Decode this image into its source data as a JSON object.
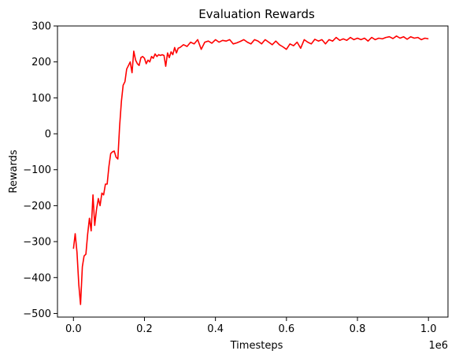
{
  "chart_data": {
    "type": "line",
    "title": "Evaluation Rewards",
    "xlabel": "Timesteps",
    "ylabel": "Rewards",
    "x_offset_label": "1e6",
    "xlim": [
      -0.045,
      1.055
    ],
    "ylim": [
      -510,
      300
    ],
    "xticks": [
      0.0,
      0.2,
      0.4,
      0.6,
      0.8,
      1.0
    ],
    "xtick_labels": [
      "0.0",
      "0.2",
      "0.4",
      "0.6",
      "0.8",
      "1.0"
    ],
    "yticks": [
      300,
      200,
      100,
      0,
      -100,
      -200,
      -300,
      -400,
      -500
    ],
    "ytick_labels": [
      "300",
      "200",
      "100",
      "0",
      "−100",
      "−200",
      "−300",
      "−400",
      "−500"
    ],
    "grid": false,
    "series": [
      {
        "color": "#ff0000",
        "x": [
          0.0,
          0.005,
          0.01,
          0.015,
          0.02,
          0.025,
          0.03,
          0.035,
          0.04,
          0.045,
          0.05,
          0.055,
          0.06,
          0.065,
          0.07,
          0.075,
          0.08,
          0.085,
          0.09,
          0.095,
          0.1,
          0.105,
          0.11,
          0.115,
          0.12,
          0.125,
          0.13,
          0.135,
          0.14,
          0.145,
          0.15,
          0.155,
          0.16,
          0.165,
          0.17,
          0.175,
          0.18,
          0.185,
          0.19,
          0.195,
          0.2,
          0.205,
          0.21,
          0.215,
          0.22,
          0.225,
          0.23,
          0.235,
          0.24,
          0.245,
          0.25,
          0.255,
          0.26,
          0.265,
          0.27,
          0.275,
          0.28,
          0.285,
          0.29,
          0.295,
          0.3,
          0.31,
          0.32,
          0.33,
          0.34,
          0.35,
          0.36,
          0.37,
          0.38,
          0.39,
          0.4,
          0.41,
          0.42,
          0.43,
          0.44,
          0.45,
          0.46,
          0.47,
          0.48,
          0.49,
          0.5,
          0.51,
          0.52,
          0.53,
          0.54,
          0.55,
          0.56,
          0.57,
          0.58,
          0.59,
          0.6,
          0.61,
          0.62,
          0.63,
          0.64,
          0.65,
          0.66,
          0.67,
          0.68,
          0.69,
          0.7,
          0.71,
          0.72,
          0.73,
          0.74,
          0.75,
          0.76,
          0.77,
          0.78,
          0.79,
          0.8,
          0.81,
          0.82,
          0.83,
          0.84,
          0.85,
          0.86,
          0.87,
          0.88,
          0.89,
          0.9,
          0.91,
          0.92,
          0.93,
          0.94,
          0.95,
          0.96,
          0.97,
          0.98,
          0.99,
          1.0
        ],
        "y": [
          -320,
          -278,
          -330,
          -420,
          -475,
          -370,
          -340,
          -335,
          -280,
          -235,
          -270,
          -170,
          -255,
          -210,
          -180,
          -200,
          -165,
          -170,
          -140,
          -140,
          -90,
          -55,
          -50,
          -48,
          -65,
          -70,
          20,
          90,
          135,
          145,
          180,
          190,
          200,
          170,
          230,
          205,
          195,
          190,
          212,
          215,
          210,
          195,
          205,
          200,
          215,
          210,
          222,
          215,
          220,
          218,
          220,
          218,
          188,
          225,
          212,
          228,
          220,
          240,
          225,
          238,
          240,
          248,
          243,
          255,
          250,
          262,
          235,
          255,
          258,
          252,
          262,
          255,
          260,
          258,
          262,
          250,
          253,
          257,
          262,
          255,
          250,
          262,
          258,
          250,
          262,
          255,
          248,
          258,
          248,
          242,
          235,
          250,
          245,
          255,
          238,
          262,
          255,
          250,
          263,
          258,
          262,
          250,
          262,
          258,
          268,
          260,
          264,
          260,
          268,
          262,
          266,
          262,
          266,
          258,
          268,
          262,
          266,
          264,
          268,
          270,
          265,
          272,
          266,
          270,
          263,
          270,
          266,
          268,
          262,
          266,
          264
        ]
      }
    ]
  }
}
